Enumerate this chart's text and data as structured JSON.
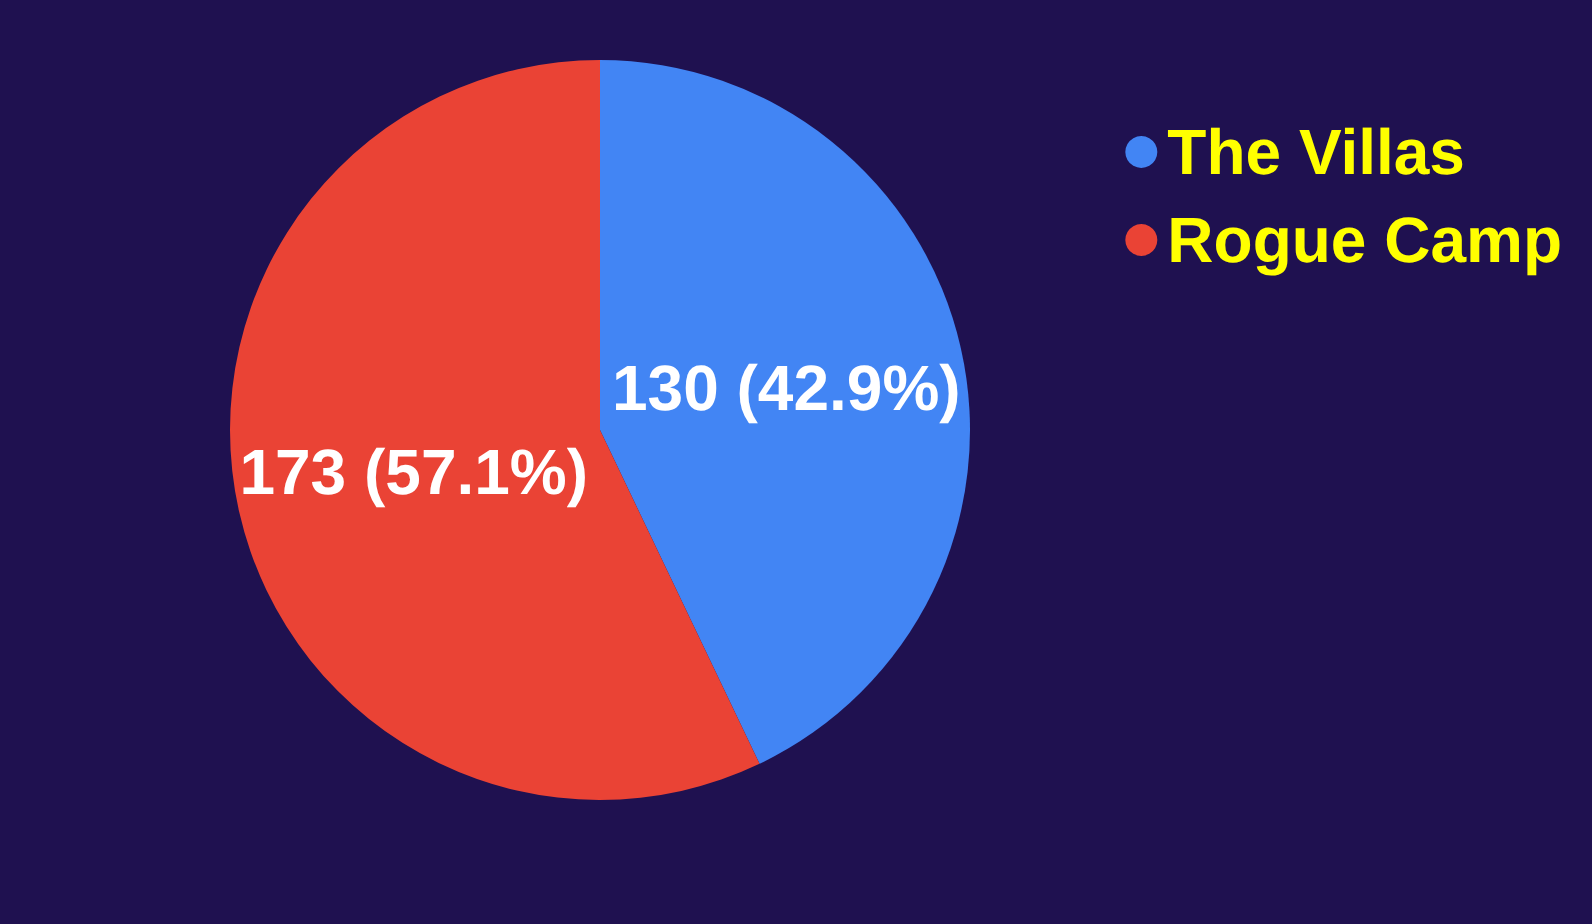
{
  "chart_data": {
    "type": "pie",
    "categories": [
      "The Villas",
      "Rogue Camp"
    ],
    "values": [
      130,
      173
    ],
    "colors": [
      "#4285f4",
      "#ea4335"
    ],
    "value_labels": [
      "130 (42.9%)",
      "173 (57.1%)"
    ],
    "legend": "top right"
  }
}
